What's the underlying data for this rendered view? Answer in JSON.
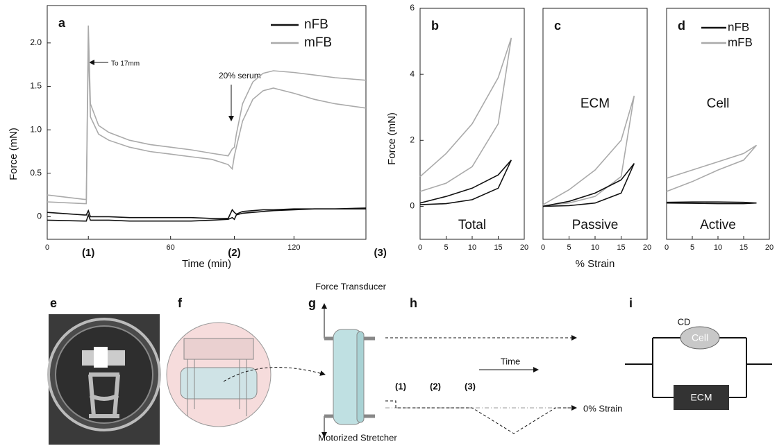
{
  "chart_data": [
    {
      "type": "line",
      "panel": "a",
      "xlabel": "Time (min)",
      "ylabel": "Force  (mN)",
      "xlim": [
        0,
        155
      ],
      "ylim": [
        -0.26,
        2.43
      ],
      "xticks": [
        0,
        {
          "value": 20,
          "label": "(1)"
        },
        60,
        {
          "value": 91,
          "label": "(2)"
        },
        120,
        {
          "value": 162,
          "label": "(3)"
        }
      ],
      "yticks": [
        0,
        0.5,
        {
          "value": 1,
          "label": "1.0"
        },
        1.5,
        {
          "value": 2,
          "label": "2.0"
        }
      ],
      "annotations": [
        "To 17mm",
        "20% serum"
      ],
      "x": [
        0,
        18,
        19,
        20,
        21,
        25,
        30,
        40,
        50,
        60,
        70,
        80,
        88,
        90,
        91,
        92,
        95,
        100,
        105,
        110,
        120,
        130,
        140,
        155
      ],
      "series": [
        {
          "name": "nFB",
          "color": "#111111",
          "traces": [
            [
              0.05,
              0.02,
              0.02,
              0.07,
              0,
              0,
              0,
              -0.01,
              -0.01,
              -0.01,
              -0.01,
              -0.02,
              -0.02,
              0.08,
              0.05,
              0.03,
              0.06,
              0.07,
              0.08,
              0.08,
              0.09,
              0.09,
              0.09,
              0.1
            ],
            [
              -0.04,
              -0.05,
              -0.05,
              0.02,
              -0.04,
              -0.04,
              -0.04,
              -0.05,
              -0.05,
              -0.05,
              -0.05,
              -0.04,
              -0.03,
              -0.01,
              -0.03,
              0.02,
              0.04,
              0.05,
              0.06,
              0.07,
              0.08,
              0.09,
              0.09,
              0.09
            ]
          ]
        },
        {
          "name": "mFB",
          "color": "#aaaaaa",
          "traces": [
            [
              0.25,
              0.2,
              0.2,
              2.2,
              1.3,
              1.05,
              0.97,
              0.88,
              0.83,
              0.8,
              0.77,
              0.73,
              0.7,
              0.78,
              0.8,
              0.95,
              1.3,
              1.55,
              1.65,
              1.68,
              1.66,
              1.63,
              1.6,
              1.57
            ],
            [
              0.17,
              0.15,
              0.15,
              2.0,
              1.15,
              0.95,
              0.88,
              0.8,
              0.75,
              0.72,
              0.69,
              0.66,
              0.6,
              0.55,
              0.7,
              0.8,
              1.1,
              1.35,
              1.45,
              1.48,
              1.42,
              1.35,
              1.3,
              1.25
            ]
          ]
        }
      ]
    },
    {
      "type": "loop",
      "panel": "b",
      "ylabel": "Force  (mN)",
      "annotations": [
        "Total"
      ],
      "xlim": [
        0,
        20
      ],
      "ylim": [
        -1,
        6
      ],
      "xticks": [
        0,
        5,
        10,
        15,
        20
      ],
      "yticks": [
        0,
        2,
        4,
        6
      ],
      "series": [
        {
          "color": "#aaaaaa",
          "x": [
            0,
            5,
            10,
            15,
            17.5,
            15,
            10,
            5,
            0
          ],
          "values": [
            0.9,
            1.6,
            2.5,
            3.9,
            5.1,
            2.5,
            1.2,
            0.7,
            0.45
          ]
        },
        {
          "color": "#111111",
          "x": [
            0,
            5,
            10,
            15,
            17.5,
            15,
            10,
            5,
            0
          ],
          "values": [
            0.1,
            0.3,
            0.55,
            0.95,
            1.4,
            0.55,
            0.2,
            0.08,
            0.05
          ]
        }
      ]
    },
    {
      "type": "loop",
      "panel": "c",
      "xlabel": "% Strain",
      "annotations": [
        "ECM",
        "Passive"
      ],
      "xlim": [
        0,
        20
      ],
      "ylim": [
        -1,
        6
      ],
      "xticks": [
        0,
        5,
        10,
        15,
        20
      ],
      "series": [
        {
          "color": "#aaaaaa",
          "x": [
            0,
            5,
            10,
            15,
            17.5,
            15,
            10,
            5,
            0
          ],
          "values": [
            0.05,
            0.5,
            1.1,
            2.0,
            3.35,
            0.9,
            0.3,
            0.1,
            0.02
          ]
        },
        {
          "color": "#111111",
          "x": [
            0,
            5,
            10,
            15,
            17.5,
            15,
            10,
            5,
            0
          ],
          "values": [
            0,
            0.15,
            0.4,
            0.8,
            1.3,
            0.4,
            0.1,
            0.02,
            0
          ]
        }
      ]
    },
    {
      "type": "loop",
      "panel": "d",
      "annotations": [
        "Cell",
        "Active"
      ],
      "xlim": [
        0,
        20
      ],
      "ylim": [
        -1,
        6
      ],
      "xticks": [
        0,
        5,
        10,
        15,
        20
      ],
      "series": [
        {
          "name": "nFB",
          "color": "#111111",
          "x": [
            0,
            5,
            10,
            15,
            17.5,
            15,
            10,
            5,
            0
          ],
          "values": [
            0.12,
            0.13,
            0.13,
            0.12,
            0.1,
            0.08,
            0.08,
            0.09,
            0.1
          ]
        },
        {
          "name": "mFB",
          "color": "#aaaaaa",
          "x": [
            0,
            5,
            10,
            15,
            17.5,
            15,
            10,
            5,
            0
          ],
          "values": [
            0.85,
            1.1,
            1.35,
            1.6,
            1.85,
            1.4,
            1.1,
            0.75,
            0.45
          ]
        }
      ]
    }
  ],
  "diagram": {
    "panels": [
      "e",
      "f",
      "g",
      "h",
      "i"
    ],
    "g": {
      "top": "Force Transducer",
      "bottom": "Motorized Stretcher"
    },
    "h": {
      "time": "Time",
      "steps": [
        "(1)",
        "(2)",
        "(3)"
      ],
      "baseline": "0% Strain"
    },
    "i": {
      "cd": "CD",
      "cell": "Cell",
      "ecm": "ECM"
    }
  }
}
